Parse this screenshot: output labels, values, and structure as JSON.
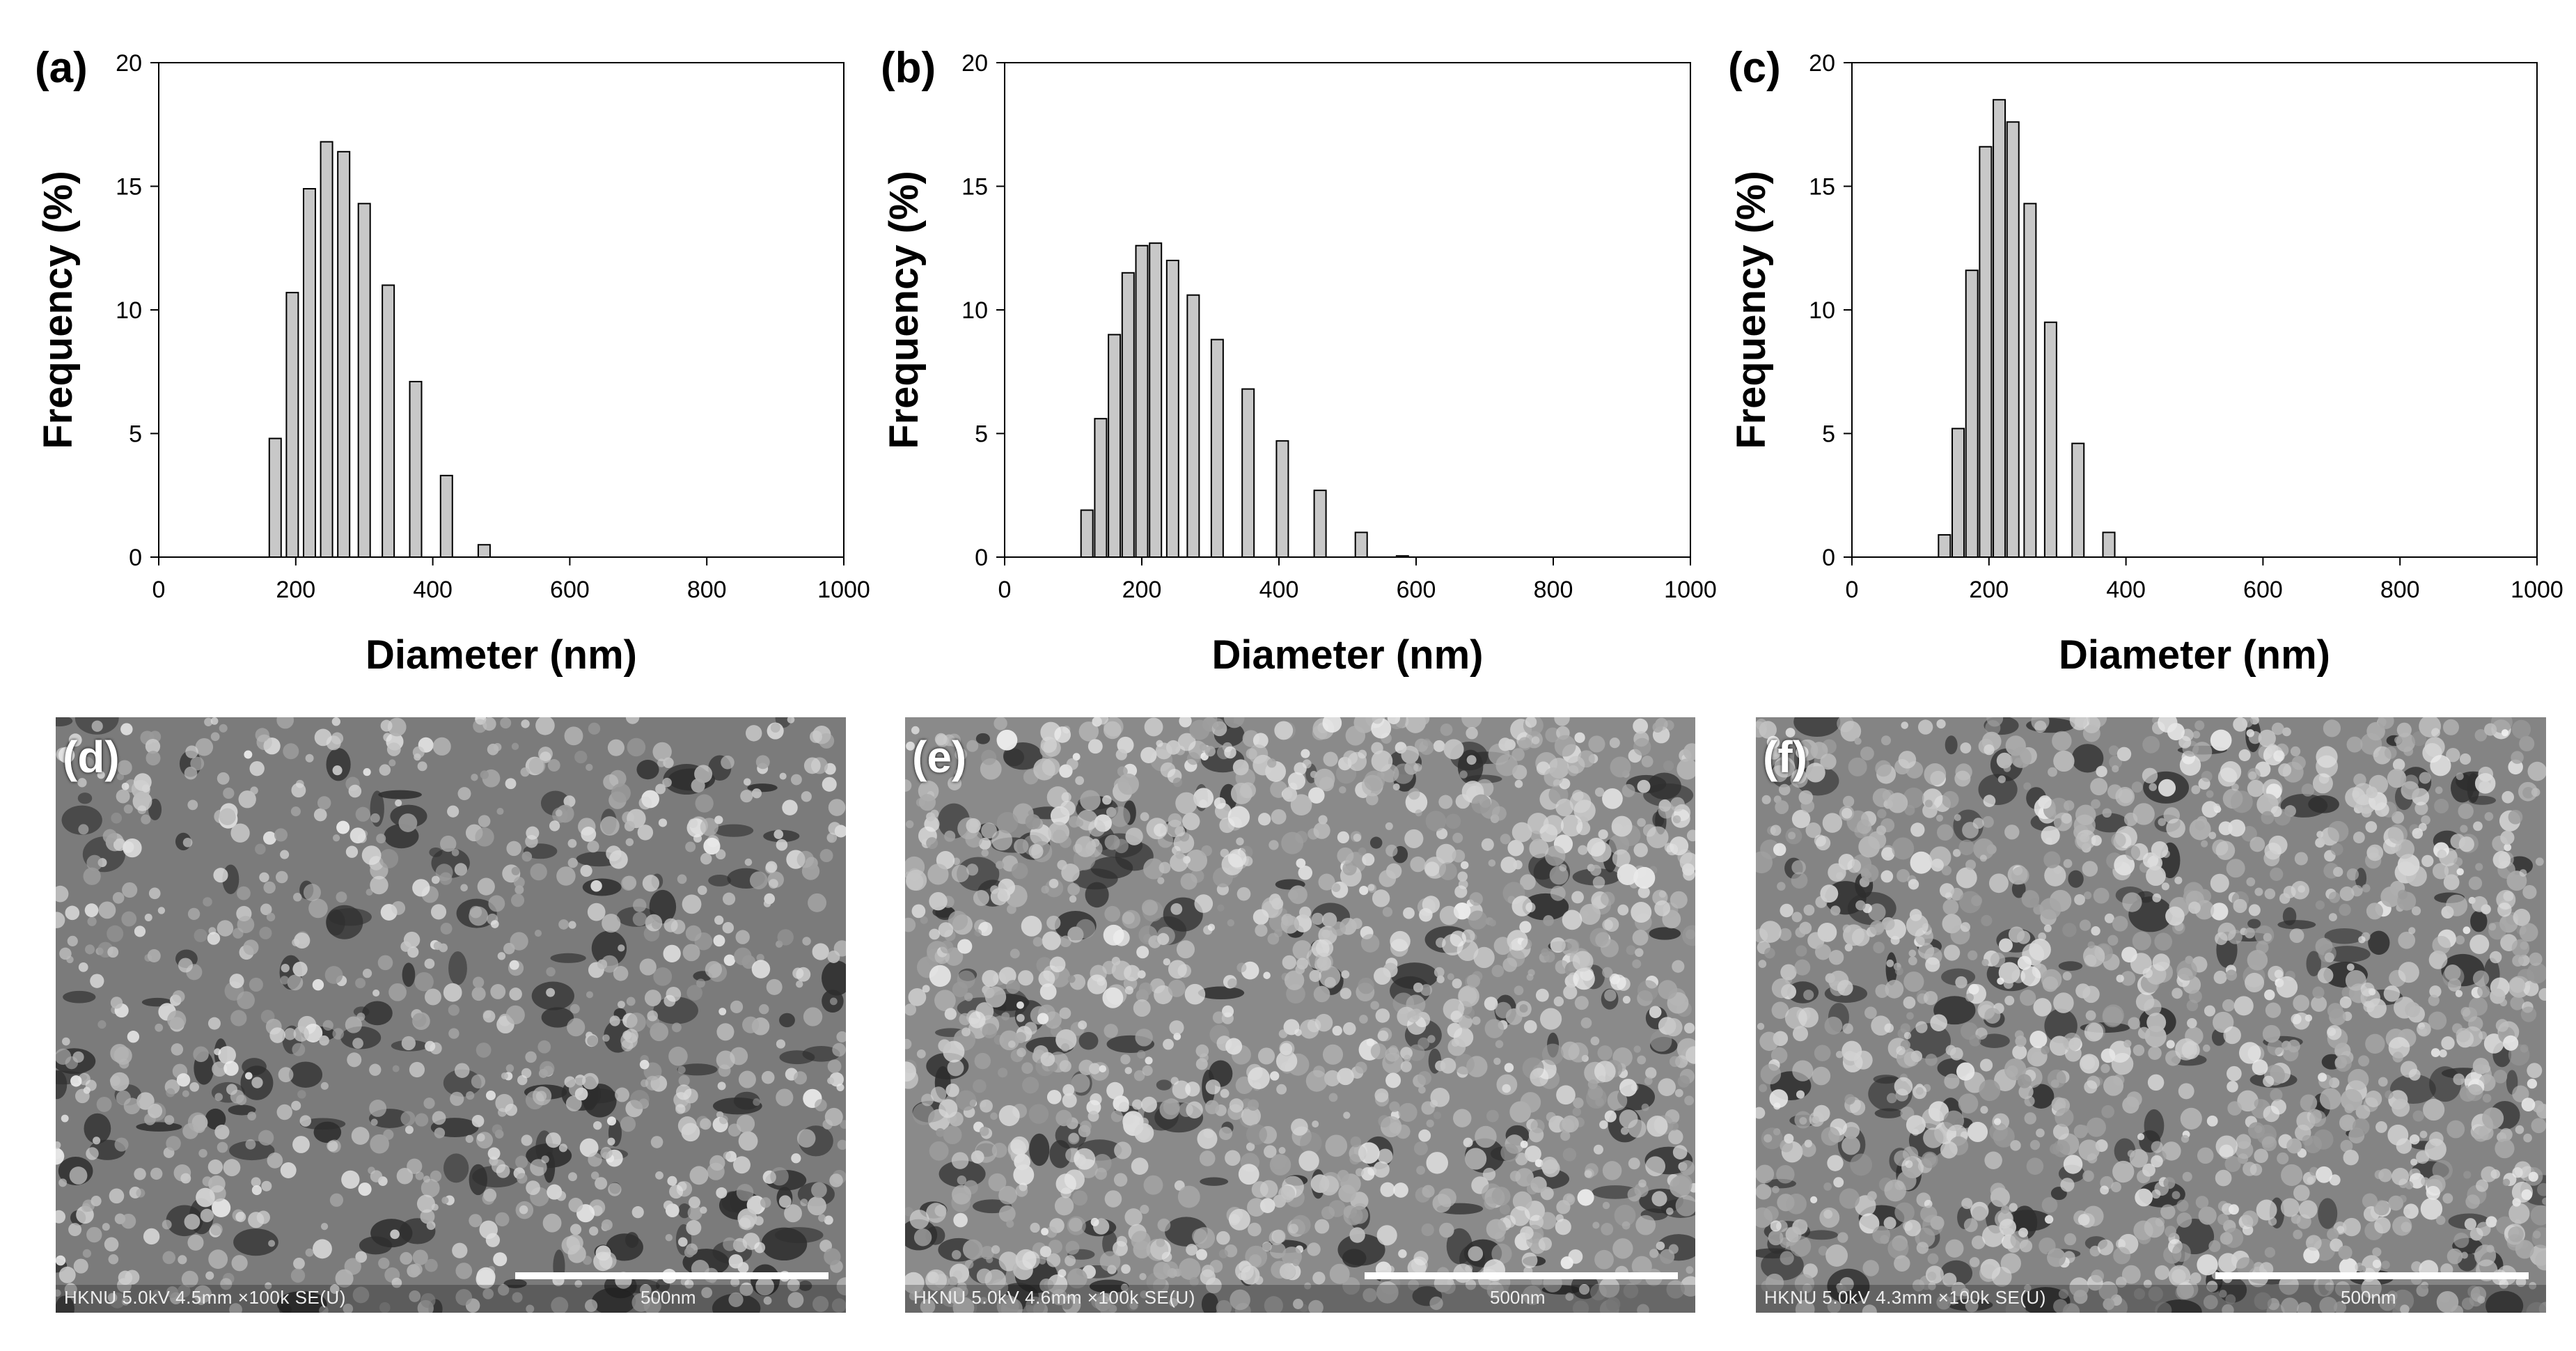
{
  "chart_data": [
    {
      "type": "bar",
      "panel_label": "(a)",
      "xlabel": "Diameter (nm)",
      "ylabel": "Frequency (%)",
      "xlim": [
        0,
        1000
      ],
      "ylim": [
        0,
        20
      ],
      "xticks": [
        0,
        200,
        400,
        600,
        800,
        1000
      ],
      "yticks": [
        0,
        5,
        10,
        15,
        20
      ],
      "grid": false,
      "x": [
        170,
        195,
        220,
        245,
        270,
        300,
        335,
        375,
        420,
        475,
        535,
        590
      ],
      "values": [
        4.8,
        10.7,
        14.9,
        16.8,
        16.4,
        14.3,
        11.0,
        7.1,
        3.3,
        0.5,
        0.0,
        0.0
      ]
    },
    {
      "type": "bar",
      "panel_label": "(b)",
      "xlabel": "Diameter (nm)",
      "ylabel": "Frequency (%)",
      "xlim": [
        0,
        1000
      ],
      "ylim": [
        0,
        20
      ],
      "xticks": [
        0,
        200,
        400,
        600,
        800,
        1000
      ],
      "yticks": [
        0,
        5,
        10,
        15,
        20
      ],
      "grid": false,
      "x": [
        120,
        140,
        160,
        180,
        200,
        220,
        245,
        275,
        310,
        355,
        405,
        460,
        520,
        580
      ],
      "values": [
        1.9,
        5.6,
        9.0,
        11.5,
        12.6,
        12.7,
        12.0,
        10.6,
        8.8,
        6.8,
        4.7,
        2.7,
        1.0,
        0.05
      ]
    },
    {
      "type": "bar",
      "panel_label": "(c)",
      "xlabel": "Diameter (nm)",
      "ylabel": "Frequency (%)",
      "xlim": [
        0,
        1000
      ],
      "ylim": [
        0,
        20
      ],
      "xticks": [
        0,
        200,
        400,
        600,
        800,
        1000
      ],
      "yticks": [
        0,
        5,
        10,
        15,
        20
      ],
      "grid": false,
      "x": [
        135,
        155,
        175,
        195,
        215,
        235,
        260,
        290,
        330,
        375,
        420
      ],
      "values": [
        0.9,
        5.2,
        11.6,
        16.6,
        18.5,
        17.6,
        14.3,
        9.5,
        4.6,
        1.0,
        0.0
      ]
    }
  ],
  "sem_images": [
    {
      "label": "(d)",
      "info": "HKNU 5.0kV 4.5mm ×100k SE(U)",
      "scale": "500nm",
      "tone": "#7b7b7b"
    },
    {
      "label": "(e)",
      "info": "HKNU 5.0kV 4.6mm ×100k SE(U)",
      "scale": "500nm",
      "tone": "#8a8a8a"
    },
    {
      "label": "(f)",
      "info": "HKNU 5.0kV 4.3mm ×100k SE(U)",
      "scale": "500nm",
      "tone": "#848484"
    }
  ],
  "colors": {
    "bar_fill": "#c8c8c8",
    "bar_stroke": "#000000",
    "axis": "#000000"
  }
}
